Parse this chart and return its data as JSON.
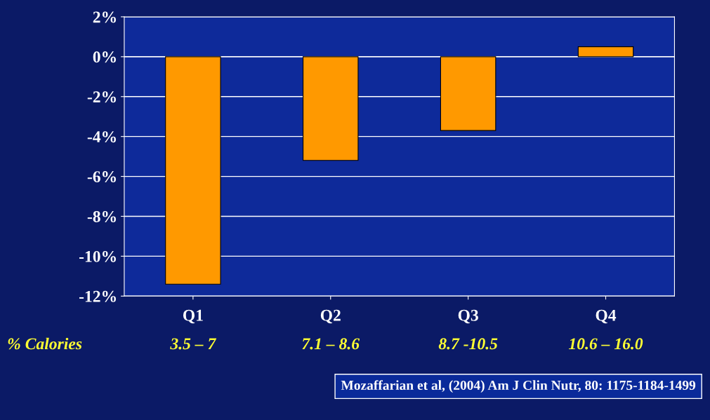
{
  "chart_data": {
    "type": "bar",
    "categories": [
      "Q1",
      "Q2",
      "Q3",
      "Q4"
    ],
    "values": [
      -11.4,
      -5.2,
      -3.7,
      0.5
    ],
    "color": "#ff9900",
    "ylim": [
      -12,
      2
    ],
    "yticks": [
      {
        "value": -12,
        "label": "-12%"
      },
      {
        "value": -10,
        "label": "-10%"
      },
      {
        "value": -8,
        "label": "-8%"
      },
      {
        "value": -6,
        "label": "-6%"
      },
      {
        "value": -4,
        "label": "-4%"
      },
      {
        "value": -2,
        "label": "-2%"
      },
      {
        "value": 0,
        "label": "0%"
      },
      {
        "value": 2,
        "label": "2%"
      }
    ],
    "grid": "y",
    "annotations": [
      "% Calories",
      "3.5 – 7",
      "7.1 – 8.6",
      "8.7 -10.5",
      "10.6 – 16.0",
      "Mozaffarian et al, (2004) Am J Clin Nutr, 80: 1175-1184-1499"
    ]
  }
}
